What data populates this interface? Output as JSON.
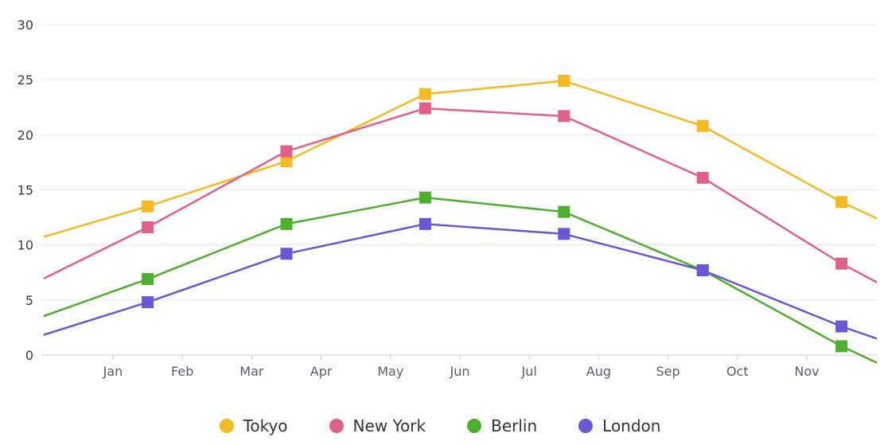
{
  "chart_data": {
    "type": "line",
    "categories": [
      "Jan",
      "Feb",
      "Mar",
      "Apr",
      "May",
      "Jun",
      "Jul",
      "Aug",
      "Sep",
      "Oct",
      "Nov"
    ],
    "x": [
      0.5,
      2.5,
      4.5,
      6.5,
      8.5,
      10.5
    ],
    "ylim": [
      0,
      30
    ],
    "yticks": [
      0,
      5,
      10,
      15,
      20,
      25,
      30
    ],
    "grid": true,
    "legend_position": "bottom",
    "series": [
      {
        "name": "Tokyo",
        "color": "#f5b921",
        "values": [
          13.5,
          17.6,
          23.7,
          24.9,
          20.8,
          13.9
        ]
      },
      {
        "name": "New York",
        "color": "#e0608a",
        "values": [
          11.6,
          18.5,
          22.4,
          21.7,
          16.1,
          8.3
        ]
      },
      {
        "name": "Berlin",
        "color": "#4caf2e",
        "values": [
          6.9,
          11.9,
          14.3,
          13.0,
          7.7,
          0.8
        ]
      },
      {
        "name": "London",
        "color": "#6b57d6",
        "values": [
          4.8,
          9.2,
          11.9,
          11.0,
          7.7,
          2.6
        ]
      }
    ]
  }
}
